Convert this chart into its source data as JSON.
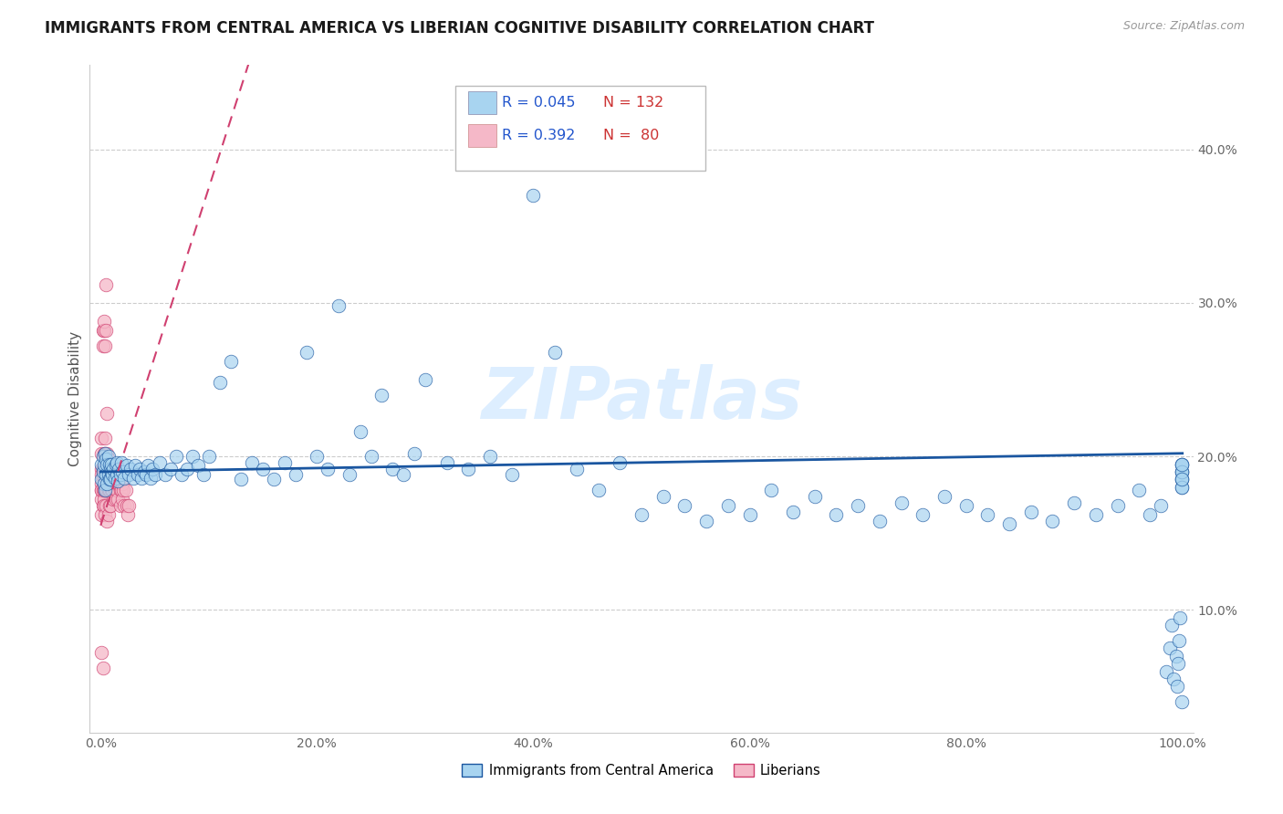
{
  "title": "IMMIGRANTS FROM CENTRAL AMERICA VS LIBERIAN COGNITIVE DISABILITY CORRELATION CHART",
  "source": "Source: ZipAtlas.com",
  "ylabel": "Cognitive Disability",
  "xlim": [
    -0.01,
    1.01
  ],
  "ylim": [
    0.02,
    0.455
  ],
  "xticks": [
    0.0,
    0.2,
    0.4,
    0.6,
    0.8,
    1.0
  ],
  "xtick_labels": [
    "0.0%",
    "20.0%",
    "40.0%",
    "60.0%",
    "80.0%",
    "100.0%"
  ],
  "yticks": [
    0.1,
    0.2,
    0.3,
    0.4
  ],
  "ytick_labels": [
    "10.0%",
    "20.0%",
    "30.0%",
    "40.0%"
  ],
  "legend_r1": "R = 0.045",
  "legend_n1": "N = 132",
  "legend_r2": "R = 0.392",
  "legend_n2": "N =  80",
  "series1_color": "#a8d4f0",
  "series2_color": "#f5b8c8",
  "trendline1_color": "#1a56a0",
  "trendline2_color": "#d04070",
  "watermark": "ZIPatlas",
  "title_fontsize": 12,
  "label_fontsize": 11,
  "tick_fontsize": 10,
  "blue_scatter_x": [
    0.001,
    0.001,
    0.002,
    0.002,
    0.003,
    0.003,
    0.004,
    0.004,
    0.005,
    0.005,
    0.006,
    0.006,
    0.007,
    0.007,
    0.008,
    0.008,
    0.009,
    0.009,
    0.01,
    0.01,
    0.011,
    0.012,
    0.013,
    0.014,
    0.015,
    0.015,
    0.016,
    0.017,
    0.018,
    0.019,
    0.02,
    0.022,
    0.024,
    0.026,
    0.028,
    0.03,
    0.032,
    0.034,
    0.036,
    0.038,
    0.04,
    0.042,
    0.044,
    0.046,
    0.048,
    0.05,
    0.055,
    0.06,
    0.065,
    0.07,
    0.075,
    0.08,
    0.085,
    0.09,
    0.095,
    0.1,
    0.11,
    0.12,
    0.13,
    0.14,
    0.15,
    0.16,
    0.17,
    0.18,
    0.19,
    0.2,
    0.21,
    0.22,
    0.23,
    0.24,
    0.25,
    0.26,
    0.27,
    0.28,
    0.29,
    0.3,
    0.32,
    0.34,
    0.36,
    0.38,
    0.4,
    0.42,
    0.44,
    0.46,
    0.48,
    0.5,
    0.52,
    0.54,
    0.56,
    0.58,
    0.6,
    0.62,
    0.64,
    0.66,
    0.68,
    0.7,
    0.72,
    0.74,
    0.76,
    0.78,
    0.8,
    0.82,
    0.84,
    0.86,
    0.88,
    0.9,
    0.92,
    0.94,
    0.96,
    0.97,
    0.98,
    0.985,
    0.988,
    0.99,
    0.992,
    0.994,
    0.995,
    0.996,
    0.997,
    0.998,
    0.999,
    0.999,
    0.999,
    0.999,
    0.999,
    0.999,
    0.999,
    0.999,
    0.999,
    0.999,
    0.999,
    0.999
  ],
  "blue_scatter_y": [
    0.185,
    0.195,
    0.19,
    0.2,
    0.182,
    0.195,
    0.178,
    0.202,
    0.188,
    0.198,
    0.182,
    0.195,
    0.188,
    0.2,
    0.185,
    0.195,
    0.192,
    0.185,
    0.19,
    0.195,
    0.188,
    0.192,
    0.186,
    0.195,
    0.188,
    0.196,
    0.184,
    0.192,
    0.188,
    0.196,
    0.19,
    0.186,
    0.194,
    0.188,
    0.192,
    0.186,
    0.194,
    0.188,
    0.192,
    0.186,
    0.19,
    0.188,
    0.194,
    0.186,
    0.192,
    0.188,
    0.196,
    0.188,
    0.192,
    0.2,
    0.188,
    0.192,
    0.2,
    0.194,
    0.188,
    0.2,
    0.248,
    0.262,
    0.185,
    0.196,
    0.192,
    0.185,
    0.196,
    0.188,
    0.268,
    0.2,
    0.192,
    0.298,
    0.188,
    0.216,
    0.2,
    0.24,
    0.192,
    0.188,
    0.202,
    0.25,
    0.196,
    0.192,
    0.2,
    0.188,
    0.37,
    0.268,
    0.192,
    0.178,
    0.196,
    0.162,
    0.174,
    0.168,
    0.158,
    0.168,
    0.162,
    0.178,
    0.164,
    0.174,
    0.162,
    0.168,
    0.158,
    0.17,
    0.162,
    0.174,
    0.168,
    0.162,
    0.156,
    0.164,
    0.158,
    0.17,
    0.162,
    0.168,
    0.178,
    0.162,
    0.168,
    0.06,
    0.075,
    0.09,
    0.055,
    0.07,
    0.05,
    0.065,
    0.08,
    0.095,
    0.04,
    0.19,
    0.185,
    0.195,
    0.18,
    0.19,
    0.185,
    0.195,
    0.18,
    0.19,
    0.185,
    0.195
  ],
  "pink_scatter_x": [
    0.001,
    0.001,
    0.001,
    0.001,
    0.001,
    0.001,
    0.001,
    0.001,
    0.001,
    0.001,
    0.002,
    0.002,
    0.002,
    0.002,
    0.002,
    0.002,
    0.002,
    0.002,
    0.003,
    0.003,
    0.003,
    0.003,
    0.003,
    0.003,
    0.003,
    0.004,
    0.004,
    0.004,
    0.004,
    0.004,
    0.004,
    0.005,
    0.005,
    0.005,
    0.005,
    0.005,
    0.005,
    0.006,
    0.006,
    0.006,
    0.006,
    0.006,
    0.007,
    0.007,
    0.007,
    0.007,
    0.008,
    0.008,
    0.008,
    0.008,
    0.009,
    0.009,
    0.009,
    0.01,
    0.01,
    0.01,
    0.011,
    0.011,
    0.012,
    0.012,
    0.013,
    0.013,
    0.014,
    0.014,
    0.015,
    0.015,
    0.016,
    0.016,
    0.017,
    0.018,
    0.018,
    0.019,
    0.02,
    0.02,
    0.021,
    0.022,
    0.023,
    0.024,
    0.025,
    0.026
  ],
  "pink_scatter_y": [
    0.182,
    0.172,
    0.192,
    0.162,
    0.202,
    0.212,
    0.178,
    0.072,
    0.188,
    0.178,
    0.192,
    0.168,
    0.282,
    0.272,
    0.188,
    0.178,
    0.062,
    0.192,
    0.202,
    0.282,
    0.172,
    0.192,
    0.168,
    0.288,
    0.178,
    0.192,
    0.202,
    0.212,
    0.178,
    0.162,
    0.272,
    0.188,
    0.282,
    0.178,
    0.312,
    0.192,
    0.168,
    0.202,
    0.178,
    0.158,
    0.228,
    0.192,
    0.178,
    0.198,
    0.162,
    0.178,
    0.192,
    0.182,
    0.168,
    0.178,
    0.192,
    0.188,
    0.168,
    0.182,
    0.178,
    0.188,
    0.178,
    0.192,
    0.182,
    0.172,
    0.188,
    0.178,
    0.182,
    0.172,
    0.188,
    0.178,
    0.182,
    0.172,
    0.182,
    0.178,
    0.168,
    0.178,
    0.182,
    0.172,
    0.178,
    0.168,
    0.178,
    0.168,
    0.162,
    0.168
  ]
}
